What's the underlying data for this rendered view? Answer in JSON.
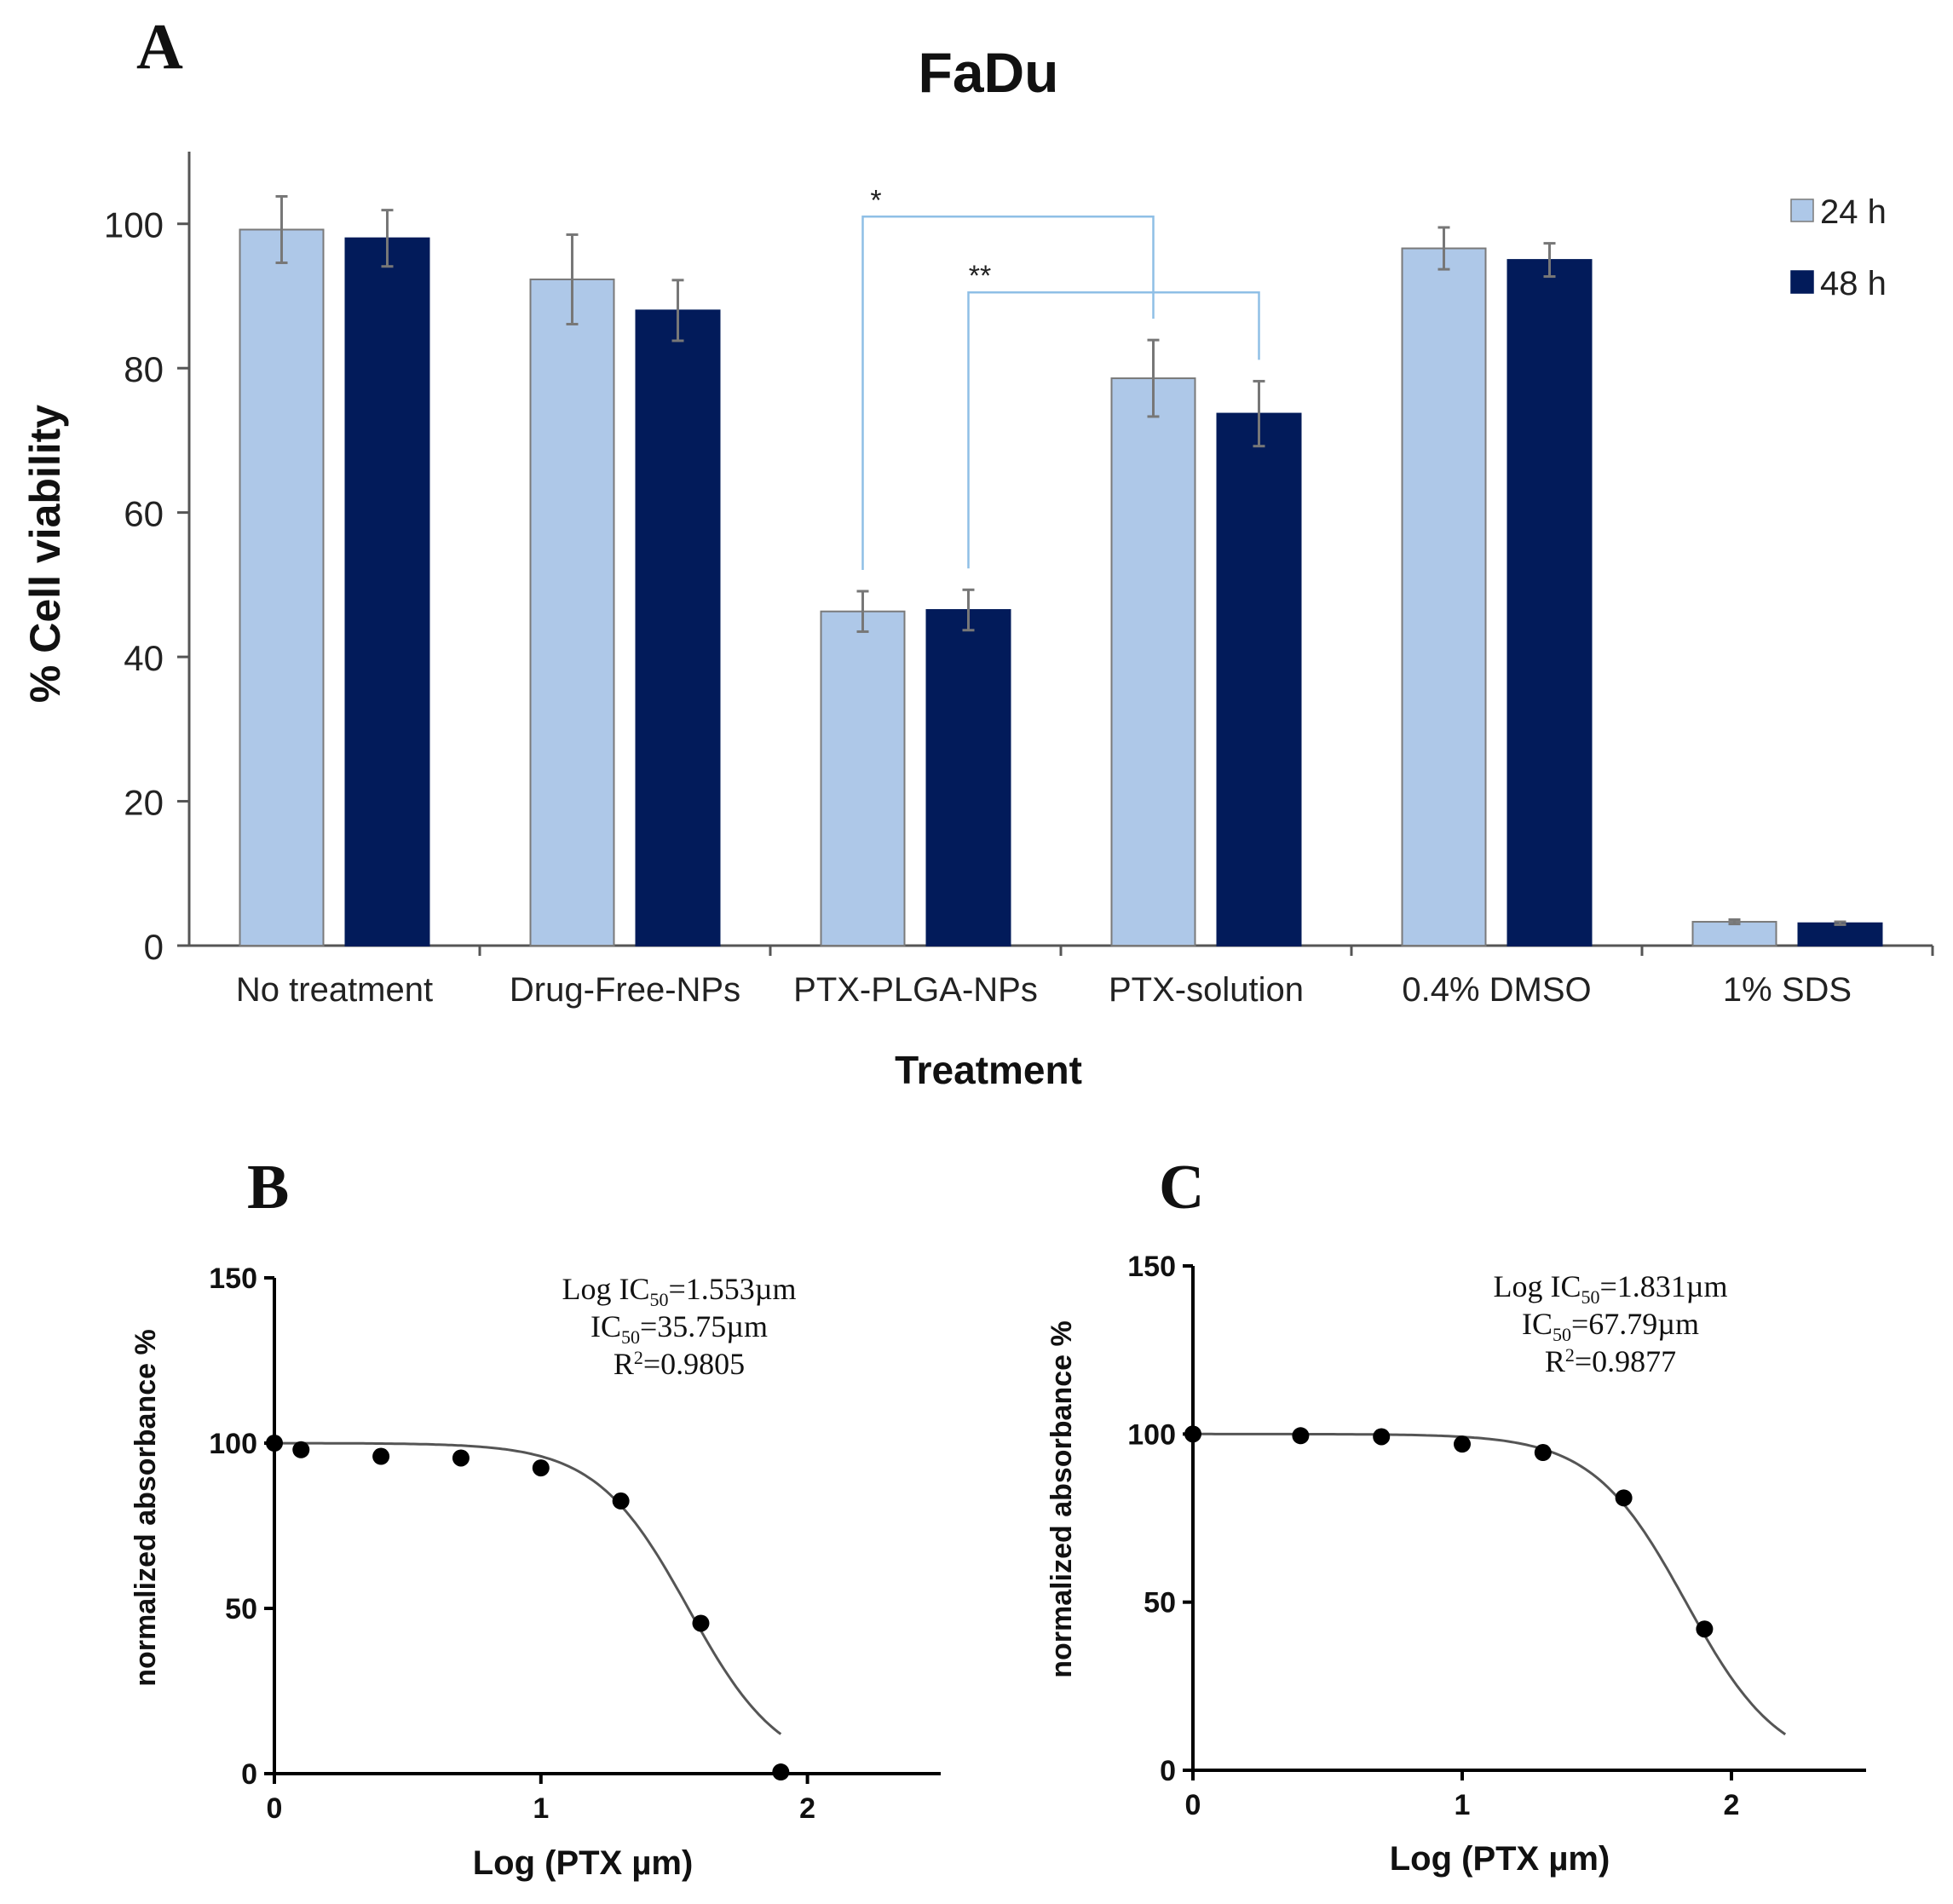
{
  "colors": {
    "h24": "#aec8e8",
    "h48": "#021b5a",
    "bracket": "#8fbfe6",
    "axis": "#555555",
    "curve": "#555555",
    "point": "#000000"
  },
  "panel_letters": [
    "A",
    "B",
    "C"
  ],
  "chart_data": [
    {
      "type": "bar",
      "title": "FaDu",
      "xlabel": "Treatment",
      "ylabel": "% Cell viability",
      "ylim": [
        0,
        110
      ],
      "yticks": [
        0,
        20,
        40,
        60,
        80,
        100
      ],
      "categories": [
        "No treatment",
        "Drug-Free-NPs",
        "PTX-PLGA-NPs",
        "PTX-solution",
        "0.4% DMSO",
        "1% SDS"
      ],
      "series": [
        {
          "name": "24 h",
          "values": [
            99.2,
            92.3,
            46.3,
            78.6,
            96.6,
            3.3
          ],
          "errors": [
            4.6,
            6.2,
            2.8,
            5.3,
            2.9,
            0.3
          ]
        },
        {
          "name": "48 h",
          "values": [
            98.0,
            88.0,
            46.5,
            73.7,
            95.0,
            3.1
          ],
          "errors": [
            3.9,
            4.2,
            2.8,
            4.5,
            2.3,
            0.2
          ]
        }
      ],
      "significance": [
        {
          "label": "*",
          "from": [
            2,
            0
          ],
          "to": [
            3,
            0
          ]
        },
        {
          "label": "**",
          "from": [
            2,
            1
          ],
          "to": [
            3,
            1
          ]
        }
      ],
      "legend_position": "top-right"
    },
    {
      "type": "scatter",
      "xlabel": "Log (PTX µm)",
      "ylabel": "normalized absorbance %",
      "xlim": [
        0,
        2.5
      ],
      "ylim": [
        0,
        150
      ],
      "xticks": [
        0,
        1,
        2
      ],
      "yticks": [
        0,
        50,
        100,
        150
      ],
      "x": [
        0,
        0.1,
        0.4,
        0.7,
        1.0,
        1.3,
        1.6,
        1.9
      ],
      "y": [
        100,
        98,
        96,
        95.5,
        92.5,
        82.5,
        45.5,
        0.5
      ],
      "fit": {
        "model": "sigmoid",
        "top": 100,
        "bottom": 0,
        "logIC50": 1.553,
        "hill": 2.5,
        "x_end": 1.9
      },
      "annotation": [
        {
          "pre": "Log IC",
          "sub": "50",
          "post": "=1.553µm"
        },
        {
          "pre": "IC",
          "sub": "50",
          "post": "=35.75µm"
        },
        {
          "pre": "R",
          "sup": "2",
          "post": "=0.9805"
        }
      ]
    },
    {
      "type": "scatter",
      "xlabel": "Log (PTX µm)",
      "ylabel": "normalized absorbance %",
      "xlim": [
        0,
        2.5
      ],
      "ylim": [
        0,
        150
      ],
      "xticks": [
        0,
        1,
        2
      ],
      "yticks": [
        0,
        50,
        100,
        150
      ],
      "x": [
        0,
        0.4,
        0.7,
        1.0,
        1.3,
        1.6,
        1.9
      ],
      "y": [
        100,
        99.5,
        99.2,
        97,
        94.5,
        81,
        42
      ],
      "fit": {
        "model": "sigmoid",
        "top": 100,
        "bottom": 0,
        "logIC50": 1.831,
        "hill": 2.5,
        "x_end": 2.2
      },
      "annotation": [
        {
          "pre": "Log IC",
          "sub": "50",
          "post": "=1.831µm"
        },
        {
          "pre": "IC",
          "sub": "50",
          "post": "=67.79µm"
        },
        {
          "pre": "R",
          "sup": "2",
          "post": "=0.9877"
        }
      ]
    }
  ]
}
